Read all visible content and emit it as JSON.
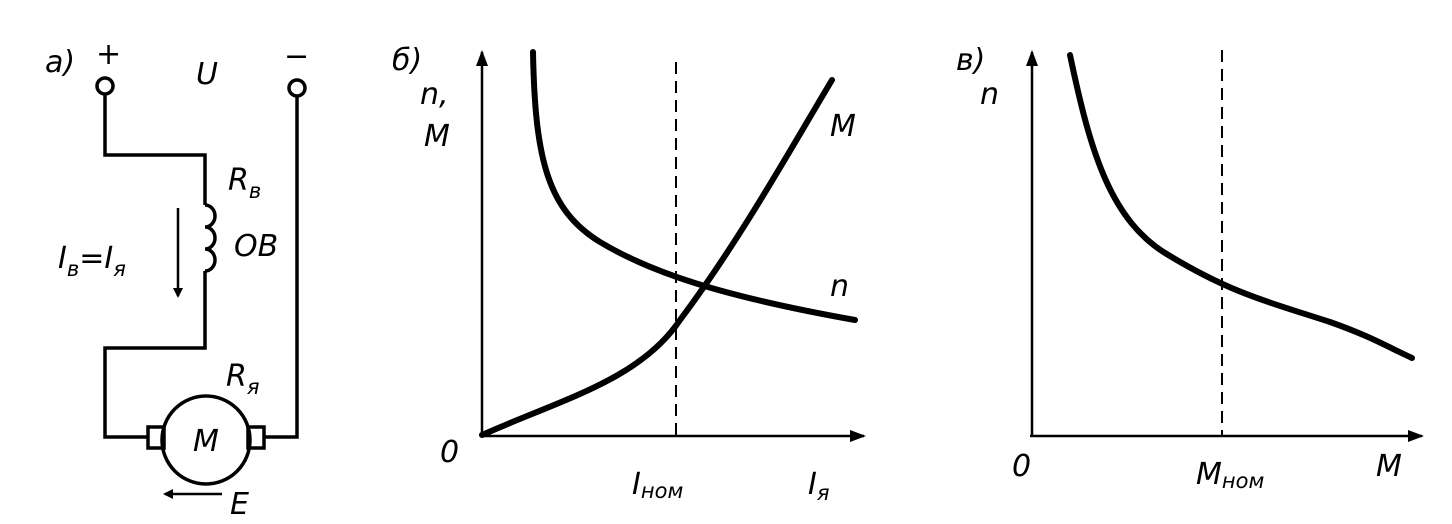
{
  "panel_a": {
    "label": "а)",
    "plus": "+",
    "minus": "−",
    "voltage": "U",
    "field_resistance": {
      "symbol": "R",
      "subscript": "в"
    },
    "current": {
      "parts": [
        "I",
        "в",
        "=I",
        "я"
      ]
    },
    "winding": "ОВ",
    "armature_resistance": {
      "symbol": "R",
      "subscript": "я"
    },
    "motor": "M",
    "emf": "E"
  },
  "panel_b": {
    "label": "б)",
    "y_axis_label_top": "n,",
    "y_axis_label_bottom": "M",
    "origin": "0",
    "x_marker": {
      "symbol": "I",
      "subscript": "ном"
    },
    "x_axis_label": {
      "symbol": "I",
      "subscript": "я"
    },
    "curve_m_label": "M",
    "curve_n_label": "n"
  },
  "panel_c": {
    "label": "в)",
    "y_axis_label": "n",
    "origin": "0",
    "x_marker": {
      "symbol": "M",
      "subscript": "ном"
    },
    "x_axis_label": "M"
  }
}
